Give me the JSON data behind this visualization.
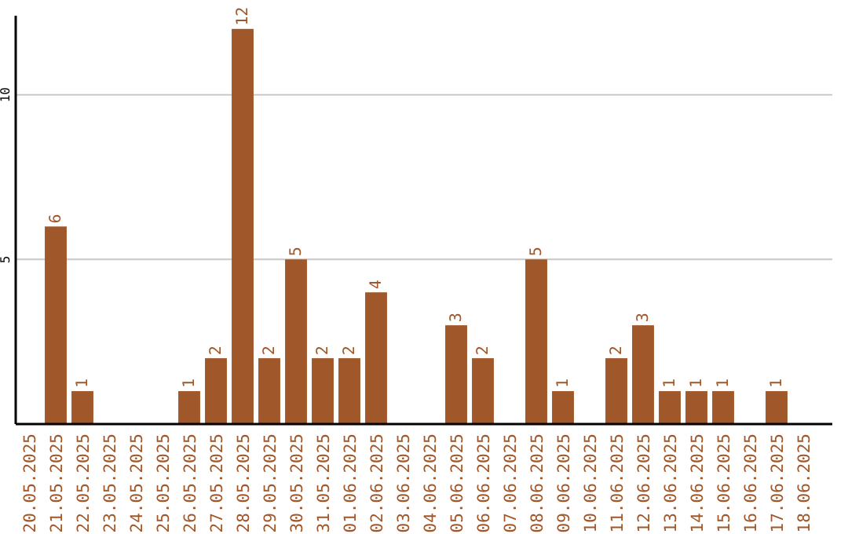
{
  "chart_data": {
    "type": "bar",
    "categories": [
      "20.05.2025",
      "21.05.2025",
      "22.05.2025",
      "23.05.2025",
      "24.05.2025",
      "25.05.2025",
      "26.05.2025",
      "27.05.2025",
      "28.05.2025",
      "29.05.2025",
      "30.05.2025",
      "31.05.2025",
      "01.06.2025",
      "02.06.2025",
      "03.06.2025",
      "04.06.2025",
      "05.06.2025",
      "06.06.2025",
      "07.06.2025",
      "08.06.2025",
      "09.06.2025",
      "10.06.2025",
      "11.06.2025",
      "12.06.2025",
      "13.06.2025",
      "14.06.2025",
      "15.06.2025",
      "16.06.2025",
      "17.06.2025",
      "18.06.2025"
    ],
    "values": [
      0,
      6,
      1,
      0,
      0,
      0,
      1,
      2,
      12,
      2,
      5,
      2,
      2,
      4,
      0,
      0,
      3,
      2,
      0,
      5,
      1,
      0,
      2,
      3,
      1,
      1,
      1,
      0,
      1,
      0
    ],
    "value_labels": [
      null,
      "6",
      "1",
      null,
      null,
      null,
      "1",
      "2",
      "12",
      "2",
      "5",
      "2",
      "2",
      "4",
      null,
      null,
      "3",
      "2",
      null,
      "5",
      "1",
      null,
      "2",
      "3",
      "1",
      "1",
      "1",
      null,
      "1",
      null
    ],
    "color": "#a0572a",
    "ylim": [
      0,
      12.4
    ],
    "yticks": [
      5,
      10
    ],
    "grid": "y"
  }
}
